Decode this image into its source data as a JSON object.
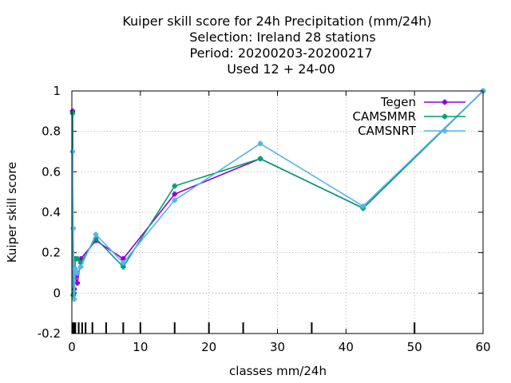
{
  "chart_data": {
    "type": "line",
    "title_lines": [
      "Kuiper skill score  for 24h Precipitation (mm/24h)",
      "Selection: Ireland      28 stations",
      "Period: 20200203-20200217",
      "Used  12 + 24-00"
    ],
    "xlabel": "classes mm/24h",
    "ylabel": "Kuiper skill score",
    "xlim": [
      0,
      60
    ],
    "ylim": [
      -0.2,
      1
    ],
    "x_ticks": [
      0,
      10,
      20,
      30,
      40,
      50,
      60
    ],
    "y_ticks": [
      -0.2,
      0,
      0.2,
      0.4,
      0.6,
      0.8,
      1
    ],
    "y_tick_labels": [
      "-0.2",
      "0",
      "0.2",
      "0.4",
      "0.6",
      "0.8",
      "1"
    ],
    "class_marks": [
      0.1,
      0.3,
      0.5,
      1,
      1.5,
      2,
      3,
      5,
      7.5,
      10,
      15,
      20,
      25,
      35,
      50
    ],
    "grid": true,
    "legend_position": "top-right",
    "series": [
      {
        "name": "Tegen",
        "color": "#9400d3",
        "x": [
          0.1,
          0.2,
          0.35,
          0.5,
          0.8,
          1.3,
          3.5,
          7.5,
          15,
          27.5,
          42.5,
          60
        ],
        "y": [
          0.9,
          -0.01,
          0.02,
          0.08,
          0.05,
          0.17,
          0.26,
          0.17,
          0.49,
          0.665,
          0.42,
          1.0
        ]
      },
      {
        "name": "CAMSMMR",
        "color": "#009e73",
        "x": [
          0.1,
          0.2,
          0.35,
          0.5,
          0.8,
          1.3,
          3.5,
          7.5,
          15,
          27.5,
          42.5,
          60
        ],
        "y": [
          0.89,
          -0.01,
          0.0,
          0.17,
          0.17,
          0.15,
          0.27,
          0.13,
          0.53,
          0.665,
          0.42,
          1.0
        ]
      },
      {
        "name": "CAMSNRT",
        "color": "#56b4e9",
        "x": [
          0.1,
          0.2,
          0.35,
          0.5,
          0.8,
          1.3,
          3.5,
          7.5,
          15,
          27.5,
          42.5,
          60
        ],
        "y": [
          0.7,
          0.32,
          -0.03,
          0.12,
          0.1,
          0.13,
          0.29,
          0.15,
          0.46,
          0.74,
          0.43,
          1.0
        ]
      }
    ]
  }
}
